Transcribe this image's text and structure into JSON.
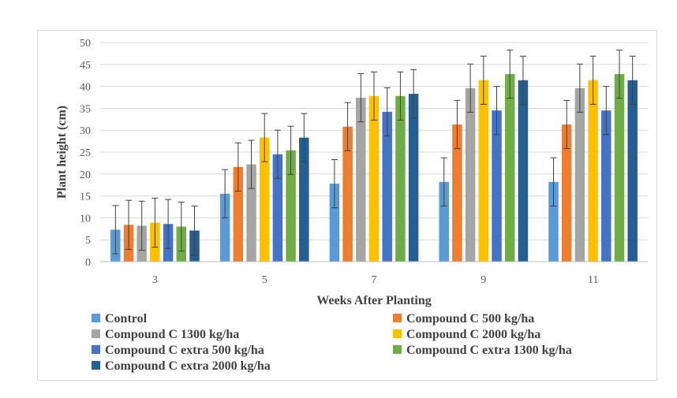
{
  "chart_data": {
    "type": "bar",
    "xlabel": "Weeks After Planting",
    "ylabel": "Plant height (cm)",
    "ylim": [
      0,
      50
    ],
    "yticks": [
      0,
      5,
      10,
      15,
      20,
      25,
      30,
      35,
      40,
      45,
      50
    ],
    "categories": [
      "3",
      "5",
      "7",
      "9",
      "11"
    ],
    "grid": true,
    "legend_position": "bottom",
    "series": [
      {
        "name": "Control",
        "color": "#5b9bd5",
        "values": [
          7.3,
          15.5,
          17.8,
          18.2,
          18.2
        ],
        "errors": [
          5.5,
          5.5,
          5.5,
          5.5,
          5.5
        ]
      },
      {
        "name": "Compound C 500 kg/ha",
        "color": "#ed7d31",
        "values": [
          8.4,
          21.6,
          30.8,
          31.3,
          31.3
        ],
        "errors": [
          5.6,
          5.5,
          5.5,
          5.5,
          5.5
        ]
      },
      {
        "name": "Compound C 1300 kg/ha",
        "color": "#a5a5a5",
        "values": [
          8.2,
          22.2,
          37.4,
          39.6,
          39.6
        ],
        "errors": [
          5.6,
          5.5,
          5.5,
          5.5,
          5.5
        ]
      },
      {
        "name": "Compound C 2000 kg/ha",
        "color": "#ffc000",
        "values": [
          8.9,
          28.3,
          37.8,
          41.4,
          41.4
        ],
        "errors": [
          5.6,
          5.5,
          5.5,
          5.5,
          5.5
        ]
      },
      {
        "name": "Compound C extra 500 kg/ha",
        "color": "#4472c4",
        "values": [
          8.6,
          24.5,
          34.2,
          34.5,
          34.5
        ],
        "errors": [
          5.6,
          5.5,
          5.5,
          5.5,
          5.5
        ]
      },
      {
        "name": "Compound C extra 1300 kg/ha",
        "color": "#70ad47",
        "values": [
          8.0,
          25.4,
          37.8,
          42.8,
          42.8
        ],
        "errors": [
          5.6,
          5.5,
          5.5,
          5.5,
          5.5
        ]
      },
      {
        "name": "Compound C extra 2000 kg/ha",
        "color": "#255e91",
        "values": [
          7.1,
          28.3,
          38.3,
          41.4,
          41.4
        ],
        "errors": [
          5.6,
          5.5,
          5.5,
          5.5,
          5.5
        ]
      }
    ]
  }
}
